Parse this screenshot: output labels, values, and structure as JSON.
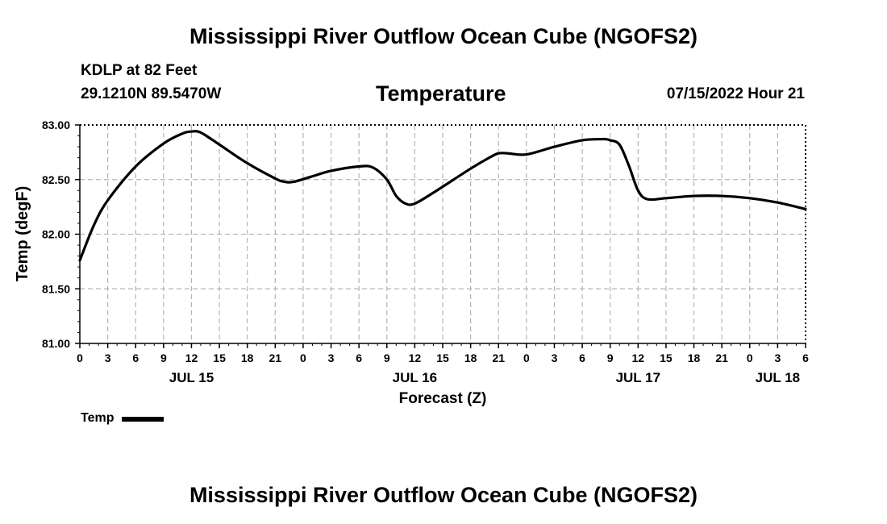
{
  "header": {
    "main_title": "Mississippi River Outflow Ocean Cube (NGOFS2)",
    "station": "KDLP at 82 Feet",
    "coordinates": "29.1210N  89.5470W",
    "subtitle": "Temperature",
    "datetime": "07/15/2022 Hour 21"
  },
  "footer": {
    "title": "Mississippi River Outflow Ocean Cube (NGOFS2)"
  },
  "legend": {
    "label": "Temp",
    "color": "#000000"
  },
  "chart_data": {
    "type": "line",
    "title": "Temperature",
    "xlabel": "Forecast (Z)",
    "ylabel": "Temp (degF)",
    "xlim": [
      0,
      78
    ],
    "ylim": [
      81.0,
      83.0
    ],
    "y_ticks": [
      "81.00",
      "81.50",
      "82.00",
      "82.50",
      "83.00"
    ],
    "x_ticks": [
      "0",
      "3",
      "6",
      "9",
      "12",
      "15",
      "18",
      "21",
      "0",
      "3",
      "6",
      "9",
      "12",
      "15",
      "18",
      "21",
      "0",
      "3",
      "6",
      "9",
      "12",
      "15",
      "18",
      "21",
      "0",
      "3",
      "6"
    ],
    "x_tick_interval_hours": 3,
    "date_labels": [
      {
        "label": "JUL 15",
        "hour": 12
      },
      {
        "label": "JUL 16",
        "hour": 36
      },
      {
        "label": "JUL 17",
        "hour": 60
      },
      {
        "label": "JUL 18",
        "hour": 75
      }
    ],
    "grid": true,
    "series": [
      {
        "name": "Temp",
        "x": [
          0,
          1.5,
          3,
          6,
          9,
          11,
          12,
          13,
          15,
          18,
          21,
          22,
          23,
          25,
          27,
          30,
          31.5,
          33,
          34,
          35,
          36,
          38,
          42,
          44,
          45,
          46,
          48,
          51,
          54,
          56,
          56.5,
          57,
          58,
          59,
          60,
          61,
          63,
          66,
          69,
          72,
          75,
          78
        ],
        "values": [
          81.76,
          82.08,
          82.31,
          82.62,
          82.83,
          82.92,
          82.94,
          82.93,
          82.82,
          82.65,
          82.51,
          82.48,
          82.48,
          82.53,
          82.58,
          82.62,
          82.61,
          82.5,
          82.35,
          82.28,
          82.28,
          82.38,
          82.6,
          82.7,
          82.74,
          82.74,
          82.73,
          82.8,
          82.86,
          82.87,
          82.87,
          82.86,
          82.82,
          82.63,
          82.4,
          82.32,
          82.33,
          82.35,
          82.35,
          82.33,
          82.29,
          82.23
        ]
      }
    ]
  }
}
